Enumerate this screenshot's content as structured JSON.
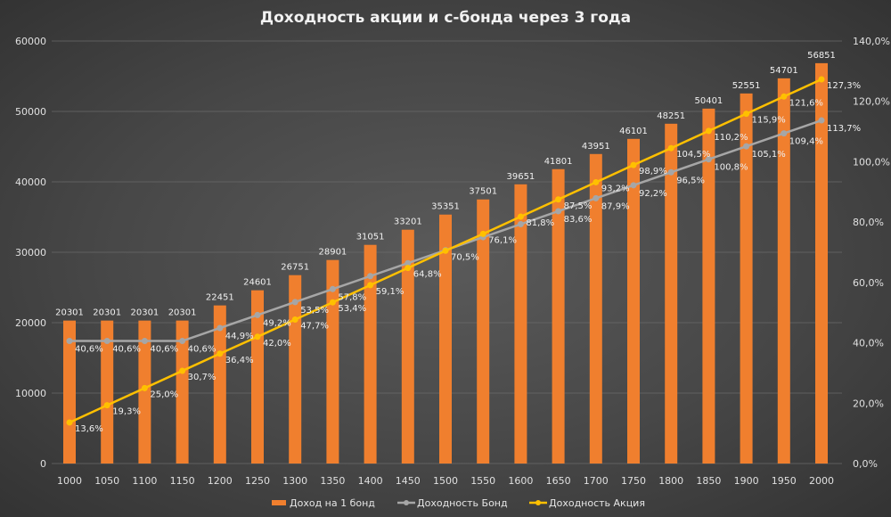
{
  "chart_data": {
    "type": "bar+line",
    "title": "Доходность акции и с-бонда через 3 года",
    "categories": [
      "1000",
      "1050",
      "1100",
      "1150",
      "1200",
      "1250",
      "1300",
      "1350",
      "1400",
      "1450",
      "1500",
      "1550",
      "1600",
      "1650",
      "1700",
      "1750",
      "1800",
      "1850",
      "1900",
      "1950",
      "2000"
    ],
    "y_left": {
      "range": [
        0,
        60000
      ],
      "ticks": [
        "0",
        "10000",
        "20000",
        "30000",
        "40000",
        "50000",
        "60000"
      ]
    },
    "y_right": {
      "range": [
        0,
        140
      ],
      "ticks": [
        "0,0%",
        "20,0%",
        "40,0%",
        "60,0%",
        "80,0%",
        "100,0%",
        "120,0%",
        "140,0%"
      ]
    },
    "grid": true,
    "legend_position": "bottom",
    "series": [
      {
        "name": "Доход на 1 бонд",
        "type": "bar",
        "axis": "left",
        "color": "#f07f2e",
        "values": [
          20301,
          20301,
          20301,
          20301,
          22451,
          24601,
          26751,
          28901,
          31051,
          33201,
          35351,
          37501,
          39651,
          41801,
          43951,
          46101,
          48251,
          50401,
          52551,
          54701,
          56851
        ]
      },
      {
        "name": "Доходность Бонд",
        "type": "line",
        "axis": "right",
        "color": "#a6a6a6",
        "values": [
          40.6,
          40.6,
          40.6,
          40.6,
          44.9,
          49.2,
          53.5,
          57.8,
          62.1,
          66.4,
          70.7,
          75.0,
          79.3,
          83.6,
          87.9,
          92.2,
          96.5,
          100.8,
          105.1,
          109.4,
          113.7
        ],
        "labels_shown": [
          true,
          true,
          true,
          true,
          true,
          true,
          true,
          true,
          false,
          false,
          false,
          false,
          false,
          true,
          true,
          true,
          true,
          true,
          true,
          true,
          true
        ]
      },
      {
        "name": "Доходность Акция",
        "type": "line",
        "axis": "right",
        "color": "#ffc000",
        "values": [
          13.6,
          19.3,
          25.0,
          30.7,
          36.4,
          42.0,
          47.7,
          53.4,
          59.1,
          64.8,
          70.5,
          76.1,
          81.8,
          87.5,
          93.2,
          98.9,
          104.5,
          110.2,
          115.9,
          121.6,
          127.3
        ]
      }
    ]
  }
}
